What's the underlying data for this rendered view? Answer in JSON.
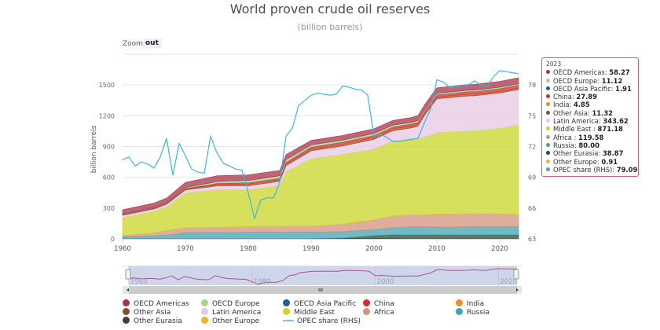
{
  "title": "World proven crude oil reserves",
  "subtitle": "(billion barrels)",
  "zoom": {
    "label": "Zoom",
    "out_label": "out"
  },
  "tooltip": {
    "header": "2023",
    "rows": [
      {
        "name": "OECD Americas",
        "value": "58.27",
        "color": "#a8324a"
      },
      {
        "name": "OECD Europe",
        "value": "11.12",
        "color": "#a6d48a"
      },
      {
        "name": "OECD Asia Pacific",
        "value": "1.91",
        "color": "#1f5c99"
      },
      {
        "name": "China",
        "value": "27.89",
        "color": "#e0262e"
      },
      {
        "name": "India",
        "value": "4.85",
        "color": "#f08a24"
      },
      {
        "name": "Other Asia",
        "value": "11.32",
        "color": "#8c4a2f"
      },
      {
        "name": "Latin America",
        "value": "343.62",
        "color": "#e8c8e3"
      },
      {
        "name": "Middle East ",
        "value": "871.18",
        "color": "#c9d625"
      },
      {
        "name": "Africa ",
        "value": "119.58",
        "color": "#d4917a"
      },
      {
        "name": "Russia",
        "value": "80.00",
        "color": "#3fa3b0"
      },
      {
        "name": "Other Eurasia",
        "value": "38.87",
        "color": "#2e4a2e"
      },
      {
        "name": "Other Europe",
        "value": "0.91",
        "color": "#f5b321"
      },
      {
        "name": "OPEC share (RHS)",
        "value": "79.09",
        "color": "#2aa8e8"
      }
    ]
  },
  "navigator": {
    "labels": [
      "1960",
      "1980",
      "2000",
      "2020"
    ]
  },
  "legend": [
    {
      "name": "OECD Americas",
      "color": "#a8324a",
      "type": "dot"
    },
    {
      "name": "OECD Europe",
      "color": "#a6d48a",
      "type": "dot"
    },
    {
      "name": "OECD Asia Pacific",
      "color": "#1f5c99",
      "type": "dot"
    },
    {
      "name": "China",
      "color": "#e0262e",
      "type": "dot"
    },
    {
      "name": "India",
      "color": "#f08a24",
      "type": "dot"
    },
    {
      "name": "Other Asia",
      "color": "#8c4a2f",
      "type": "dot"
    },
    {
      "name": "Latin America",
      "color": "#e8c8e3",
      "type": "dot"
    },
    {
      "name": "Middle East",
      "color": "#c9d625",
      "type": "dot"
    },
    {
      "name": "Africa",
      "color": "#d4917a",
      "type": "dot"
    },
    {
      "name": "Russia",
      "color": "#3fa3b0",
      "type": "dot"
    },
    {
      "name": "Other Eurasia",
      "color": "#2e4a2e",
      "type": "dot"
    },
    {
      "name": "Other Europe",
      "color": "#f5b321",
      "type": "dot"
    },
    {
      "name": "OPEC share (RHS)",
      "color": "#7cc8f0",
      "type": "line"
    }
  ],
  "chart_data": {
    "type": "area",
    "stacked": true,
    "title": "World proven crude oil reserves",
    "subtitle": "(billion barrels)",
    "xlabel": "",
    "ylabel": "billion barrels",
    "y2label": "",
    "xlim": [
      1960,
      2023
    ],
    "ylim": [
      0,
      1800
    ],
    "y2lim": [
      63,
      81
    ],
    "x_ticks": [
      "1960",
      "1970",
      "1980",
      "1990",
      "2000",
      "2010",
      "2020"
    ],
    "y_ticks": [
      "0",
      "300",
      "600",
      "900",
      "1200",
      "1500"
    ],
    "y2_ticks": [
      "63",
      "66",
      "69",
      "72",
      "75",
      "78"
    ],
    "grid": true,
    "legend_position": "bottom",
    "x_key_years": [
      1960,
      1965,
      1967,
      1970,
      1974,
      1975,
      1980,
      1985,
      1986,
      1990,
      1995,
      2000,
      2003,
      2006,
      2007,
      2008,
      2010,
      2015,
      2016,
      2020,
      2023
    ],
    "series": [
      {
        "name": "Other Europe",
        "values": [
          2,
          2,
          2,
          2,
          2,
          2,
          2,
          2,
          2,
          2,
          2,
          2,
          2,
          1,
          1,
          1,
          1,
          1,
          1,
          1,
          1
        ]
      },
      {
        "name": "Other Eurasia",
        "values": [
          0,
          0,
          0,
          0,
          0,
          0,
          0,
          0,
          0,
          0,
          5,
          30,
          38,
          38,
          38,
          38,
          38,
          38,
          39,
          39,
          39
        ]
      },
      {
        "name": "Russia",
        "values": [
          20,
          28,
          35,
          60,
          60,
          60,
          63,
          63,
          63,
          63,
          63,
          60,
          69,
          79,
          79,
          80,
          77,
          80,
          80,
          80,
          80
        ]
      },
      {
        "name": "Africa",
        "values": [
          8,
          30,
          45,
          45,
          50,
          50,
          55,
          57,
          58,
          58,
          75,
          93,
          112,
          117,
          117,
          118,
          125,
          126,
          126,
          125,
          120
        ]
      },
      {
        "name": "Middle East",
        "values": [
          180,
          210,
          230,
          340,
          360,
          370,
          360,
          398,
          530,
          660,
          680,
          690,
          733,
          743,
          743,
          753,
          795,
          808,
          808,
          834,
          871
        ]
      },
      {
        "name": "Latin America",
        "values": [
          20,
          22,
          25,
          30,
          35,
          36,
          38,
          40,
          60,
          75,
          80,
          95,
          100,
          104,
          122,
          210,
          330,
          340,
          340,
          343,
          344
        ]
      },
      {
        "name": "Other Asia",
        "values": [
          5,
          6,
          6,
          8,
          10,
          10,
          11,
          11,
          12,
          12,
          13,
          13,
          13,
          13,
          13,
          12,
          12,
          12,
          12,
          11,
          11
        ]
      },
      {
        "name": "India",
        "values": [
          1,
          1,
          1,
          2,
          2,
          2,
          3,
          4,
          4,
          5,
          5,
          5,
          5,
          5,
          5,
          5,
          5,
          5,
          5,
          5,
          5
        ]
      },
      {
        "name": "China",
        "values": [
          3,
          3,
          4,
          6,
          10,
          12,
          15,
          16,
          18,
          20,
          20,
          20,
          20,
          20,
          20,
          21,
          22,
          25,
          25,
          26,
          28
        ]
      },
      {
        "name": "OECD Asia Pacific",
        "values": [
          2,
          2,
          2,
          2,
          2,
          2,
          2,
          2,
          2,
          2,
          2,
          2,
          2,
          2,
          2,
          2,
          2,
          2,
          2,
          2,
          2
        ]
      },
      {
        "name": "OECD Europe",
        "values": [
          2,
          3,
          3,
          6,
          15,
          16,
          20,
          22,
          22,
          18,
          18,
          18,
          15,
          14,
          14,
          13,
          12,
          12,
          12,
          12,
          11
        ]
      },
      {
        "name": "OECD Americas",
        "values": [
          40,
          42,
          44,
          50,
          55,
          55,
          55,
          52,
          50,
          45,
          45,
          45,
          45,
          48,
          48,
          50,
          53,
          56,
          56,
          58,
          58
        ]
      }
    ],
    "line_series": {
      "name": "OPEC share (RHS)",
      "axis": "right",
      "x": [
        1960,
        1961,
        1962,
        1963,
        1964,
        1965,
        1966,
        1967,
        1968,
        1969,
        1970,
        1971,
        1972,
        1973,
        1974,
        1975,
        1976,
        1977,
        1978,
        1979,
        1980,
        1981,
        1982,
        1983,
        1984,
        1985,
        1986,
        1987,
        1988,
        1989,
        1990,
        1991,
        1992,
        1993,
        1994,
        1995,
        1996,
        1997,
        1998,
        1999,
        2000,
        2001,
        2002,
        2003,
        2004,
        2005,
        2006,
        2007,
        2008,
        2009,
        2010,
        2011,
        2012,
        2013,
        2014,
        2015,
        2016,
        2017,
        2018,
        2019,
        2020,
        2021,
        2022,
        2023
      ],
      "values": [
        70.7,
        71.0,
        70.1,
        70.5,
        70.3,
        69.9,
        71.0,
        72.8,
        69.2,
        72.3,
        71.1,
        69.8,
        69.5,
        69.4,
        73.0,
        71.4,
        70.4,
        70.1,
        69.8,
        69.7,
        67.5,
        65.0,
        66.8,
        67.0,
        67.0,
        68.5,
        73.0,
        73.8,
        76.0,
        76.5,
        77.0,
        77.2,
        77.1,
        77.0,
        77.1,
        77.9,
        77.8,
        77.6,
        77.5,
        77.0,
        73.0,
        73.2,
        72.9,
        72.5,
        72.5,
        72.6,
        72.7,
        72.8,
        74.3,
        75.6,
        78.5,
        78.3,
        77.8,
        77.8,
        77.9,
        78.0,
        78.4,
        78.0,
        77.8,
        78.8,
        79.4,
        79.3,
        79.2,
        79.09
      ]
    }
  }
}
